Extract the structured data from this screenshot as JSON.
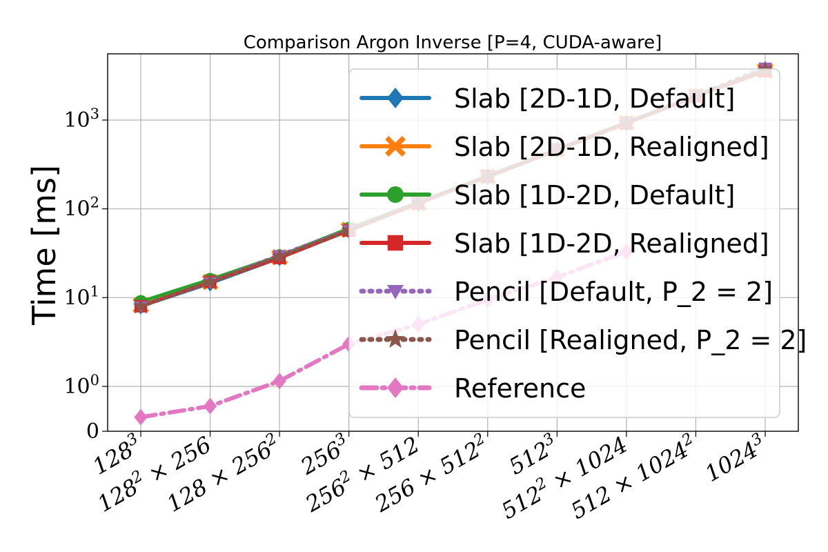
{
  "chart_data": {
    "type": "line",
    "title": "Comparison Argon Inverse [P=4, CUDA-aware]",
    "ylabel": "Time [ms]",
    "xlabel": "",
    "yscale": "log",
    "y_ticks": [
      {
        "value": 0,
        "label": "0"
      },
      {
        "value": 1,
        "label": "10^0"
      },
      {
        "value": 10,
        "label": "10^1"
      },
      {
        "value": 100,
        "label": "10^2"
      },
      {
        "value": 1000,
        "label": "10^3"
      }
    ],
    "grid": true,
    "legend_position": "right",
    "categories": [
      "128^3",
      "128^2 × 256",
      "128 × 256^2",
      "256^3",
      "256^2 × 512",
      "256 × 512^2",
      "512^3",
      "512^2 × 1024",
      "512 × 1024^2",
      "1024^3"
    ],
    "series": [
      {
        "name": "Slab [2D-1D, Default]",
        "color": "#1f77b4",
        "marker": "diamond",
        "linestyle": "solid",
        "values": [
          8.0,
          14.5,
          28,
          57,
          115,
          230,
          460,
          920,
          1850,
          3700
        ]
      },
      {
        "name": "Slab [2D-1D, Realigned]",
        "color": "#ff7f0e",
        "marker": "x-filled",
        "linestyle": "solid",
        "values": [
          8.2,
          15.0,
          28.5,
          58,
          116,
          232,
          465,
          930,
          1860,
          3600
        ]
      },
      {
        "name": "Slab [1D-2D, Default]",
        "color": "#2ca02c",
        "marker": "circle",
        "linestyle": "solid",
        "values": [
          9.0,
          16.0,
          29.5,
          60,
          118,
          235,
          470,
          940,
          1880,
          3650
        ]
      },
      {
        "name": "Slab [1D-2D, Realigned]",
        "color": "#d62728",
        "marker": "square",
        "linestyle": "solid",
        "values": [
          8.0,
          15.0,
          28.0,
          57,
          115,
          230,
          460,
          920,
          1850,
          3550
        ]
      },
      {
        "name": "Pencil [Default, P_2 = 2]",
        "color": "#9467bd",
        "marker": "triangle-down",
        "linestyle": "dotted",
        "values": [
          8.0,
          15.0,
          30.0,
          58,
          117,
          232,
          465,
          930,
          1870,
          3900
        ]
      },
      {
        "name": "Pencil [Realigned, P_2 = 2]",
        "color": "#8c564b",
        "marker": "star",
        "linestyle": "dotted",
        "values": [
          8.0,
          15.0,
          29.0,
          57,
          116,
          230,
          462,
          925,
          1860,
          3700
        ]
      },
      {
        "name": "Reference",
        "color": "#e377c2",
        "marker": "diamond",
        "linestyle": "dashdot",
        "values": [
          0.45,
          0.6,
          1.15,
          3.0,
          5.0,
          9.5,
          17.0,
          33.0,
          0,
          0
        ]
      }
    ]
  }
}
